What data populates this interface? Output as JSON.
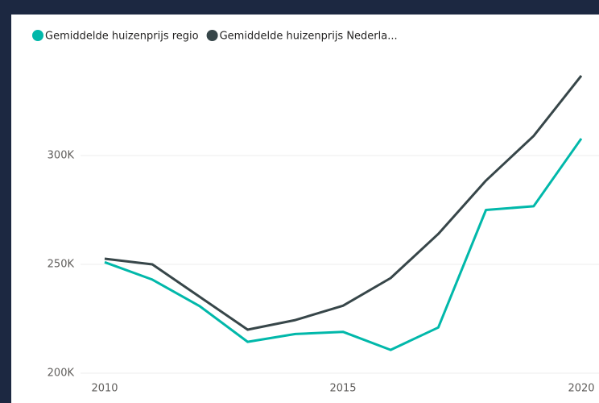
{
  "chart_data": {
    "type": "line",
    "x": [
      2010,
      2011,
      2012,
      2013,
      2014,
      2015,
      2016,
      2017,
      2018,
      2019,
      2020
    ],
    "series": [
      {
        "name": "Gemiddelde huizenprijs regio",
        "color": "#01b8aa",
        "values": [
          251000,
          243000,
          230700,
          214400,
          218000,
          219000,
          210700,
          221000,
          275000,
          276700,
          307800
        ]
      },
      {
        "name": "Gemiddelde huizenprijs Nederla...",
        "color": "#374649",
        "values": [
          252600,
          250000,
          235000,
          220000,
          224400,
          231000,
          243700,
          264000,
          288500,
          309000,
          336700
        ]
      }
    ],
    "xlim": [
      2010,
      2020
    ],
    "xticks": [
      2010,
      2015,
      2020
    ],
    "ylim": [
      200000,
      340000
    ],
    "yticks": [
      {
        "value": 200000,
        "label": "200K"
      },
      {
        "value": 250000,
        "label": "250K"
      },
      {
        "value": 300000,
        "label": "300K"
      }
    ],
    "grid": true,
    "legend": "top"
  }
}
